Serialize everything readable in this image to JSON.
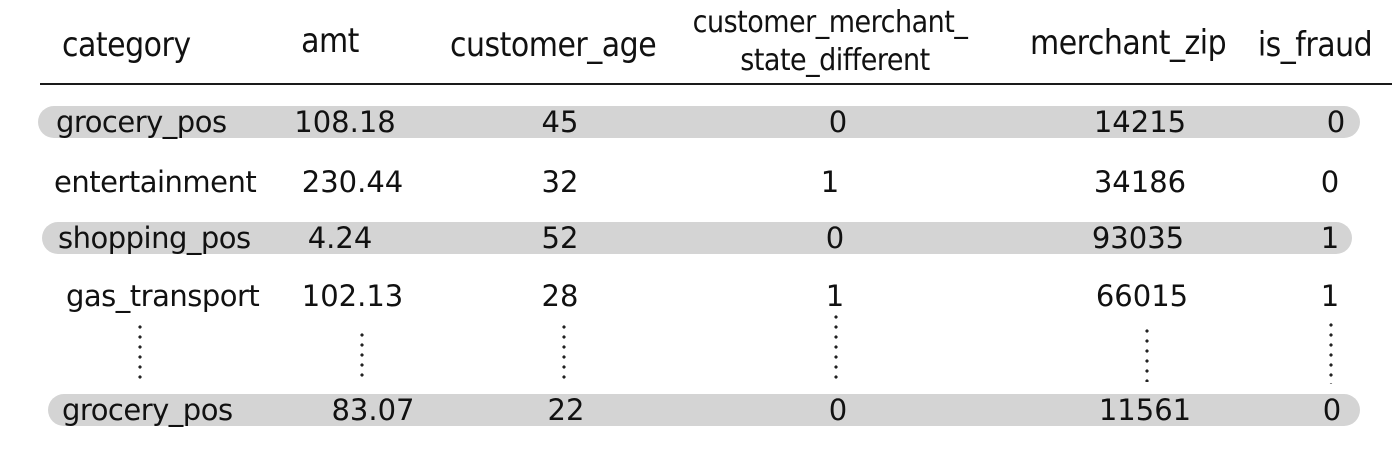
{
  "table": {
    "headers": {
      "category": "category",
      "amt": "amt",
      "customer_age": "customer_age",
      "state_diff_line1": "customer_merchant_",
      "state_diff_line2": "state_different",
      "merchant_zip": "merchant_zip",
      "is_fraud": "is_fraud"
    },
    "rows": [
      {
        "category": "grocery_pos",
        "amt": "108.18",
        "customer_age": "45",
        "state_different": "0",
        "merchant_zip": "14215",
        "is_fraud": "0",
        "highlighted": true
      },
      {
        "category": "entertainment",
        "amt": "230.44",
        "customer_age": "32",
        "state_different": "1",
        "merchant_zip": "34186",
        "is_fraud": "0",
        "highlighted": false
      },
      {
        "category": "shopping_pos",
        "amt": "4.24",
        "customer_age": "52",
        "state_different": "0",
        "merchant_zip": "93035",
        "is_fraud": "1",
        "highlighted": true
      },
      {
        "category": "gas_transport",
        "amt": "102.13",
        "customer_age": "28",
        "state_different": "1",
        "merchant_zip": "66015",
        "is_fraud": "1",
        "highlighted": false
      },
      {
        "category": "grocery_pos",
        "amt": "83.07",
        "customer_age": "22",
        "state_different": "0",
        "merchant_zip": "11561",
        "is_fraud": "0",
        "highlighted": true
      }
    ],
    "band_color": "#d4d4d4"
  }
}
